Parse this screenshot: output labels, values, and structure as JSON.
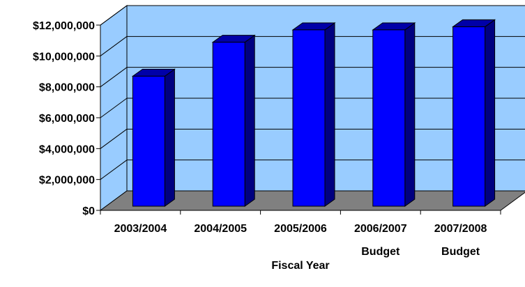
{
  "chart_data": {
    "type": "bar",
    "style": "3d-column",
    "categories": [
      [
        "2003/2004"
      ],
      [
        "2004/2005"
      ],
      [
        "2005/2006"
      ],
      [
        "2006/2007",
        "Budget"
      ],
      [
        "2007/2008",
        "Budget"
      ]
    ],
    "values": [
      8600000,
      10800000,
      11600000,
      11600000,
      11800000
    ],
    "xlabel": "Fiscal Year",
    "ylabel": "",
    "ylim": [
      0,
      12000000
    ],
    "yticks": [
      {
        "value": 0,
        "label": "$0"
      },
      {
        "value": 2000000,
        "label": "$2,000,000"
      },
      {
        "value": 4000000,
        "label": "$4,000,000"
      },
      {
        "value": 6000000,
        "label": "$6,000,000"
      },
      {
        "value": 8000000,
        "label": "$8,000,000"
      },
      {
        "value": 10000000,
        "label": "$10,000,000"
      },
      {
        "value": 12000000,
        "label": "$12,000,000"
      }
    ],
    "grid": true,
    "legend": "none",
    "colors": {
      "bar_front": "#0000ff",
      "bar_side": "#000080",
      "bar_top": "#0000a8",
      "bar_outline": "#000000",
      "back_wall": "#99ccff",
      "floor": "#808080",
      "gridline": "#000000"
    }
  }
}
